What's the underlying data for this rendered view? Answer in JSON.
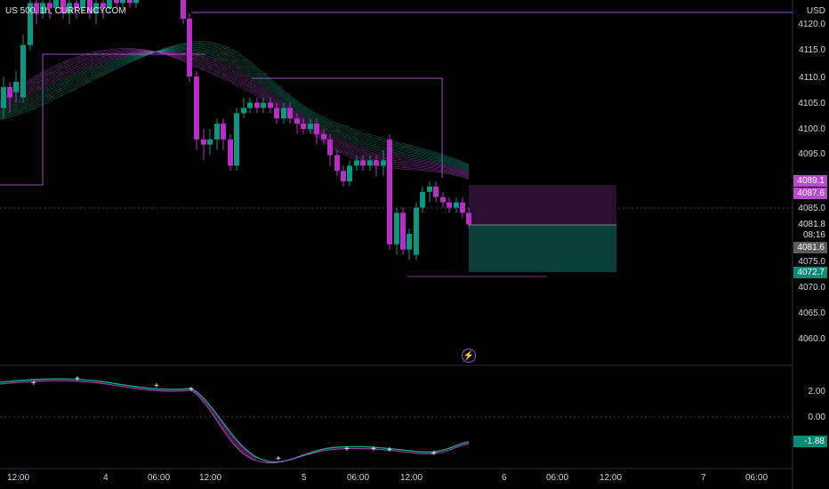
{
  "ticker": "US 500, 1h, CURRENCYCOM",
  "currency": "USD",
  "price_axis": {
    "labels": [
      "4120.0",
      "4115.0",
      "4110.0",
      "4105.0",
      "4100.0",
      "4095.0",
      "4085.0",
      "4075.0",
      "4070.0",
      "4065.0",
      "4060.0"
    ],
    "values": [
      4120,
      4115,
      4110,
      4105,
      4100,
      4095,
      4085,
      4075,
      4070,
      4065,
      4060
    ]
  },
  "badges": {
    "upper_high": "4089.1",
    "upper_low": "4087.6",
    "current_price": "4081.8",
    "countdown": "08:16",
    "gray_price": "4081.6",
    "lower": "4072.7"
  },
  "oscillator_axis": {
    "labels": [
      "2.00",
      "0.00"
    ],
    "current": "-1.88"
  },
  "time_axis": {
    "labels": [
      "12:00",
      "4",
      "06:00",
      "12:00",
      "5",
      "06:00",
      "12:00",
      "6",
      "06:00",
      "12:00",
      "7",
      "06:00"
    ]
  },
  "colors": {
    "bull": "#089981",
    "bear": "#b72fc4",
    "ribbon_purple": "#b94fcf",
    "ribbon_teal": "#17a58a",
    "badge_purple": "#b54cc8",
    "badge_teal": "#0a8a74",
    "badge_gray": "#5a5a5a",
    "target_zone": "#0b3f38",
    "stop_zone": "#2a0f33"
  },
  "icons": {
    "lightning": "lightning-icon"
  }
}
